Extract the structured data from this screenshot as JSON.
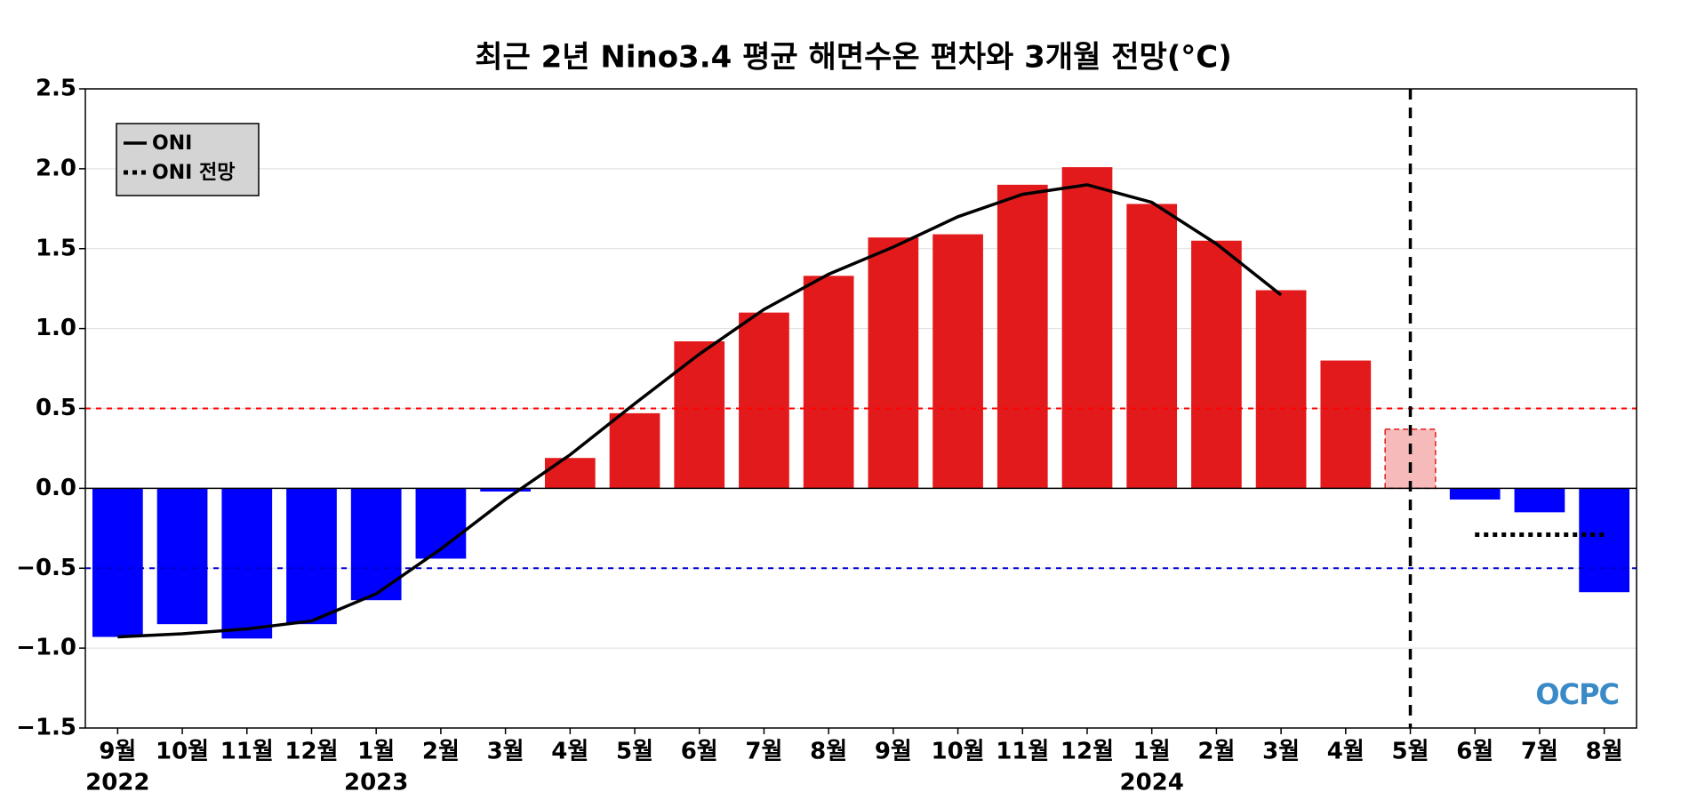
{
  "chart_data": {
    "type": "bar",
    "title": "최근 2년 Nino3.4 평균 해면수온 편차와 3개월 전망(°C)",
    "categories": [
      "9월",
      "10월",
      "11월",
      "12월",
      "1월",
      "2월",
      "3월",
      "4월",
      "5월",
      "6월",
      "7월",
      "8월",
      "9월",
      "10월",
      "11월",
      "12월",
      "1월",
      "2월",
      "3월",
      "4월",
      "5월",
      "6월",
      "7월",
      "8월"
    ],
    "years": [
      "2022",
      null,
      null,
      null,
      "2023",
      null,
      null,
      null,
      null,
      null,
      null,
      null,
      null,
      null,
      null,
      null,
      "2024",
      null,
      null,
      null,
      null,
      null,
      null,
      null
    ],
    "values": [
      -0.93,
      -0.85,
      -0.94,
      -0.85,
      -0.7,
      -0.44,
      -0.02,
      0.19,
      0.47,
      0.92,
      1.1,
      1.33,
      1.57,
      1.59,
      1.9,
      2.01,
      1.78,
      1.55,
      1.24,
      0.8,
      0.37,
      -0.07,
      -0.15,
      -0.65
    ],
    "colors": [
      "#0000ff",
      "#0000ff",
      "#0000ff",
      "#0000ff",
      "#0000ff",
      "#0000ff",
      "#0000ff",
      "#e31a1c",
      "#e31a1c",
      "#e31a1c",
      "#e31a1c",
      "#e31a1c",
      "#e31a1c",
      "#e31a1c",
      "#e31a1c",
      "#e31a1c",
      "#e31a1c",
      "#e31a1c",
      "#e31a1c",
      "#e31a1c",
      "#f7baba",
      "#0000ff",
      "#0000ff",
      "#0000ff"
    ],
    "dashed_bars": [
      20
    ],
    "series": [
      {
        "name": "ONI",
        "color": "#000000",
        "style": "solid",
        "values": [
          -0.93,
          -0.91,
          -0.88,
          -0.83,
          -0.66,
          -0.38,
          -0.07,
          0.21,
          0.53,
          0.84,
          1.12,
          1.34,
          1.51,
          1.7,
          1.84,
          1.9,
          1.79,
          1.53,
          1.21,
          null,
          null,
          null,
          null,
          null
        ]
      },
      {
        "name": "ONI 전망",
        "color": "#000000",
        "style": "dotted",
        "values": [
          null,
          null,
          null,
          null,
          null,
          null,
          null,
          null,
          null,
          null,
          null,
          null,
          null,
          null,
          null,
          null,
          null,
          null,
          null,
          null,
          null,
          -0.29,
          -0.29,
          -0.29
        ]
      }
    ],
    "hlines": [
      {
        "value": 0.5,
        "color": "#ff0000"
      },
      {
        "value": -0.5,
        "color": "#0000cc"
      }
    ],
    "vline_index": 20,
    "ylim": [
      -1.5,
      2.5
    ],
    "yticks": [
      2.5,
      {
        "value": 2,
        "label": "2.0"
      },
      1.5,
      {
        "value": 1,
        "label": "1.0"
      },
      0.5,
      {
        "value": 0,
        "label": "0.0"
      },
      {
        "value": -0.5,
        "label": "−0.5"
      },
      {
        "value": -1,
        "label": "−1.0"
      },
      {
        "value": -1.5,
        "label": "−1.5"
      }
    ],
    "grid": true,
    "legend": "upper left",
    "logo": "OCPC"
  }
}
